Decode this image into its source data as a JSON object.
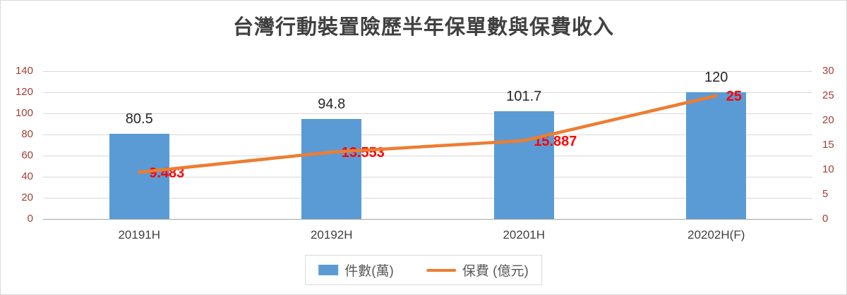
{
  "chart_data": {
    "type": "combo",
    "title": "台灣行動裝置險歷半年保單數與保費收入",
    "categories": [
      "20191H",
      "20192H",
      "20201H",
      "20202H(F)"
    ],
    "series": [
      {
        "name": "件數(萬)",
        "type": "bar",
        "axis": "left",
        "color": "#5B9BD5",
        "values": [
          80.5,
          94.8,
          101.7,
          120
        ],
        "data_labels": [
          "80.5",
          "94.8",
          "101.7",
          "120"
        ],
        "data_label_color": "#262626"
      },
      {
        "name": "保費 (億元)",
        "type": "line",
        "axis": "right",
        "color": "#ED7D31",
        "values": [
          9.483,
          13.553,
          15.887,
          25
        ],
        "data_labels": [
          "9.483",
          "13.553",
          "15.887",
          "25"
        ],
        "data_label_color": "#FF0000"
      }
    ],
    "left_axis": {
      "min": 0,
      "max": 140,
      "step": 20,
      "ticks": [
        0,
        20,
        40,
        60,
        80,
        100,
        120,
        140
      ]
    },
    "right_axis": {
      "min": 0,
      "max": 30,
      "step": 5,
      "ticks": [
        0,
        5,
        10,
        15,
        20,
        25,
        30
      ]
    },
    "grid": true,
    "legend_position": "bottom",
    "colors": {
      "gridline": "#D9D9D9",
      "axis_line": "#A6A6A6",
      "tick_label": "#A33E33",
      "category_label": "#404040",
      "title": "#404040",
      "legend_text": "#595959",
      "background": "#FFFFFF",
      "border": "#D9D9D9"
    }
  }
}
